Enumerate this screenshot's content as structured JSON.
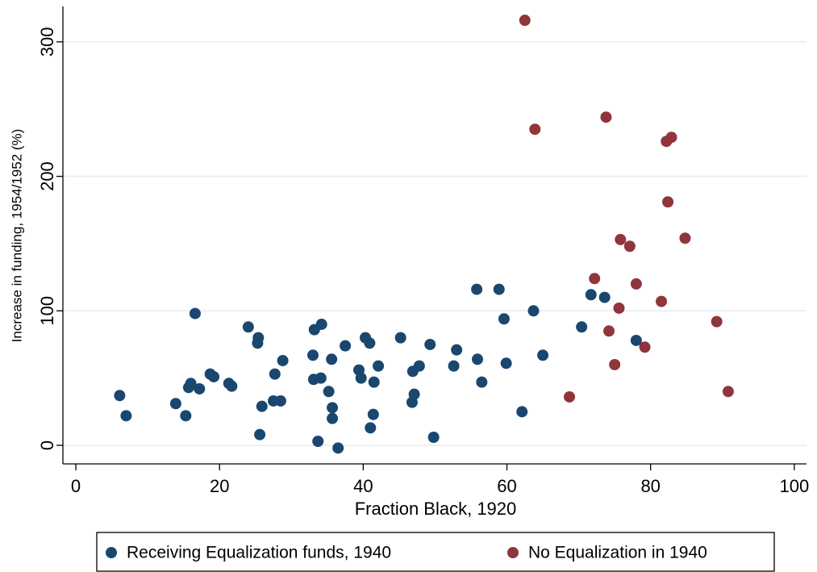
{
  "chart_data": {
    "type": "scatter",
    "x_label": "Fraction Black, 1920",
    "y_label": "Increase in funding, 1954/1952 (%)",
    "xlim": [
      -1.8,
      101.7
    ],
    "ylim": [
      -13.8,
      326.3
    ],
    "xticks": [
      0,
      20,
      40,
      60,
      80,
      100
    ],
    "yticks": [
      0,
      100,
      200,
      300
    ],
    "grid": true,
    "series": [
      {
        "name": "Receiving Equalization funds, 1940",
        "color": "#1a476f",
        "x": [
          6.1,
          7.0,
          13.9,
          15.3,
          15.7,
          16.0,
          16.6,
          17.2,
          18.7,
          19.2,
          21.3,
          21.7,
          24.0,
          25.4,
          25.3,
          25.6,
          25.9,
          27.5,
          27.7,
          28.5,
          28.8,
          33.0,
          33.2,
          33.1,
          33.7,
          34.1,
          34.2,
          35.2,
          35.6,
          35.7,
          35.7,
          36.5,
          37.5,
          39.4,
          39.7,
          40.3,
          40.9,
          41.0,
          41.4,
          41.5,
          42.1,
          45.2,
          46.8,
          46.9,
          47.1,
          47.8,
          49.3,
          49.8,
          52.6,
          53.0,
          55.8,
          55.9,
          56.5,
          58.9,
          59.6,
          59.9,
          62.1,
          63.7,
          65.0,
          70.4,
          71.7,
          73.6,
          78.0
        ],
        "values": [
          37,
          22,
          31,
          22,
          43,
          46,
          98,
          42,
          53,
          51,
          46,
          44,
          88,
          80,
          76,
          8,
          29,
          33,
          53,
          33,
          63,
          67,
          86,
          49,
          3,
          50,
          90,
          40,
          64,
          28,
          20,
          -2,
          74,
          56,
          50,
          80,
          76,
          13,
          23,
          47,
          59,
          80,
          32,
          55,
          38,
          59,
          75,
          6,
          59,
          71,
          116,
          64,
          47,
          116,
          94,
          61,
          25,
          100,
          67,
          88,
          112,
          110,
          78
        ]
      },
      {
        "name": "No Equalization in 1940",
        "color": "#90353b",
        "x": [
          62.5,
          63.9,
          68.7,
          72.2,
          73.8,
          74.2,
          75.0,
          75.6,
          75.8,
          77.1,
          78.0,
          79.2,
          81.5,
          82.2,
          82.4,
          82.9,
          84.8,
          89.2,
          90.8
        ],
        "values": [
          316,
          235,
          36,
          124,
          244,
          85,
          60,
          102,
          153,
          148,
          120,
          73,
          107,
          226,
          181,
          229,
          154,
          92,
          40
        ]
      }
    ]
  }
}
